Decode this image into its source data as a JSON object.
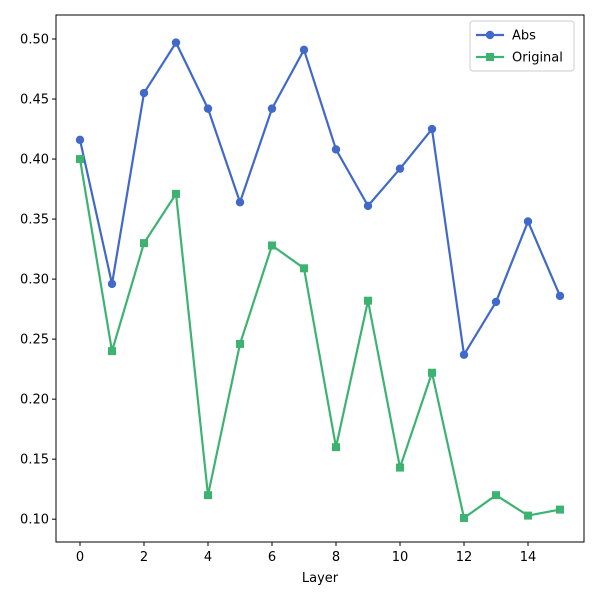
{
  "chart_data": {
    "type": "line",
    "title": "",
    "xlabel": "Layer",
    "ylabel": "",
    "x": [
      0,
      1,
      2,
      3,
      4,
      5,
      6,
      7,
      8,
      9,
      10,
      11,
      12,
      13,
      14,
      15
    ],
    "xticks": [
      0,
      2,
      4,
      6,
      8,
      10,
      12,
      14
    ],
    "xtick_labels": [
      "0",
      "2",
      "4",
      "6",
      "8",
      "10",
      "12",
      "14"
    ],
    "yticks": [
      0.1,
      0.15,
      0.2,
      0.25,
      0.3,
      0.35,
      0.4,
      0.45,
      0.5
    ],
    "ytick_labels": [
      "0.10",
      "0.15",
      "0.20",
      "0.25",
      "0.30",
      "0.35",
      "0.40",
      "0.45",
      "0.50"
    ],
    "xlim": [
      -0.75,
      15.75
    ],
    "ylim": [
      0.081,
      0.52
    ],
    "grid": false,
    "legend_position": "top-right",
    "series": [
      {
        "name": "Abs",
        "color": "#4169c9",
        "marker": "circle",
        "values": [
          0.416,
          0.296,
          0.455,
          0.497,
          0.442,
          0.364,
          0.442,
          0.491,
          0.408,
          0.361,
          0.392,
          0.425,
          0.237,
          0.281,
          0.348,
          0.286
        ]
      },
      {
        "name": "Original",
        "color": "#3cb371",
        "marker": "square",
        "values": [
          0.4,
          0.24,
          0.33,
          0.371,
          0.12,
          0.246,
          0.328,
          0.309,
          0.16,
          0.282,
          0.143,
          0.222,
          0.101,
          0.12,
          0.103,
          0.108
        ]
      }
    ]
  }
}
